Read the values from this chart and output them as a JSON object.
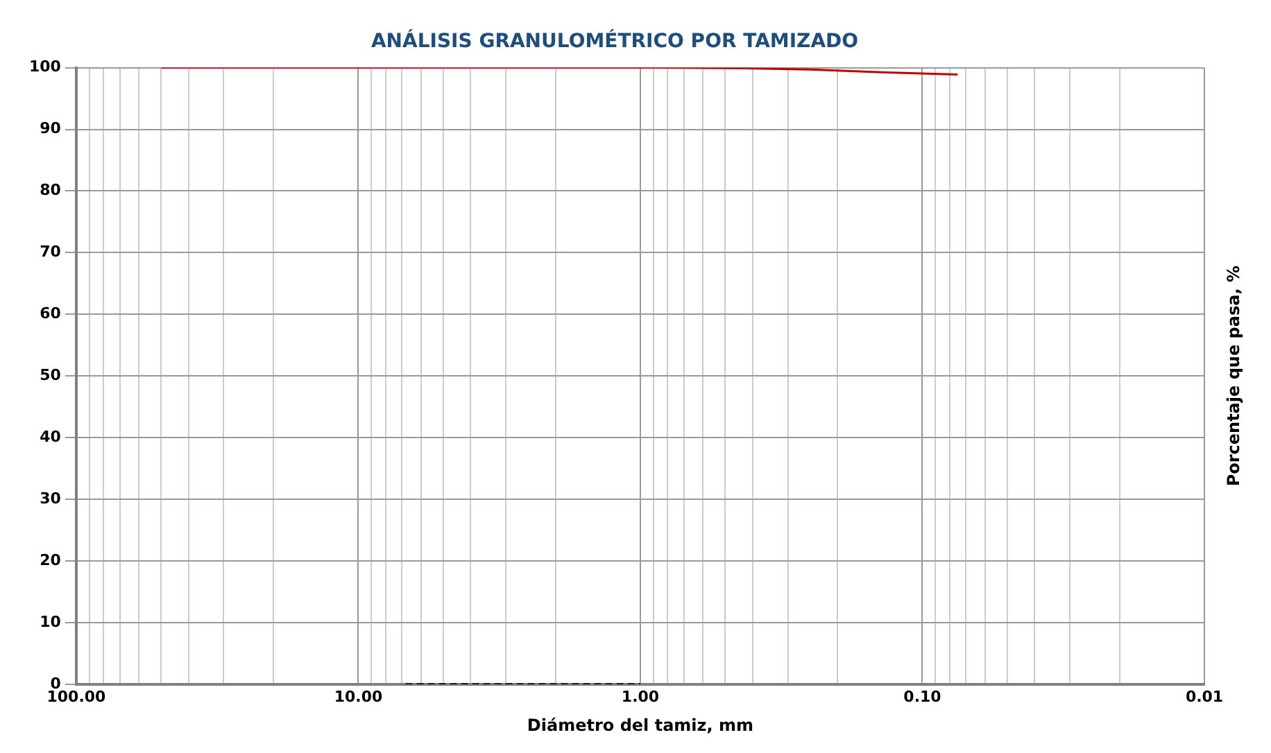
{
  "chart_data": {
    "type": "line",
    "title": "ANÁLISIS GRANULOMÉTRICO POR TAMIZADO",
    "xlabel": "Diámetro del tamiz, mm",
    "ylabel": "Porcentaje que pasa, %",
    "log": "x",
    "grid": true,
    "legend": false,
    "marker": "none",
    "xlim": [
      100,
      0.01
    ],
    "xticks": [
      {
        "value": 100,
        "label": "100.00"
      },
      {
        "value": 10,
        "label": "10.00"
      },
      {
        "value": 1,
        "label": "1.00"
      },
      {
        "value": 0.1,
        "label": "0.10"
      },
      {
        "value": 0.01,
        "label": "0.01"
      }
    ],
    "ylim": [
      0,
      100
    ],
    "yticks": [
      0,
      10,
      20,
      30,
      40,
      50,
      60,
      70,
      80,
      90,
      100
    ],
    "series": [
      {
        "color": "#c00000",
        "line_style": "solid",
        "x": [
          50,
          25,
          9.5,
          4.75,
          2,
          0.85,
          0.425,
          0.25,
          0.15,
          0.075
        ],
        "values": [
          100,
          100,
          100,
          100,
          100,
          100,
          99.9,
          99.7,
          99.3,
          98.9
        ]
      },
      {
        "color": "#000000",
        "line_style": "dashed",
        "x": [
          6.8,
          1
        ],
        "values": [
          0,
          0
        ]
      }
    ]
  }
}
